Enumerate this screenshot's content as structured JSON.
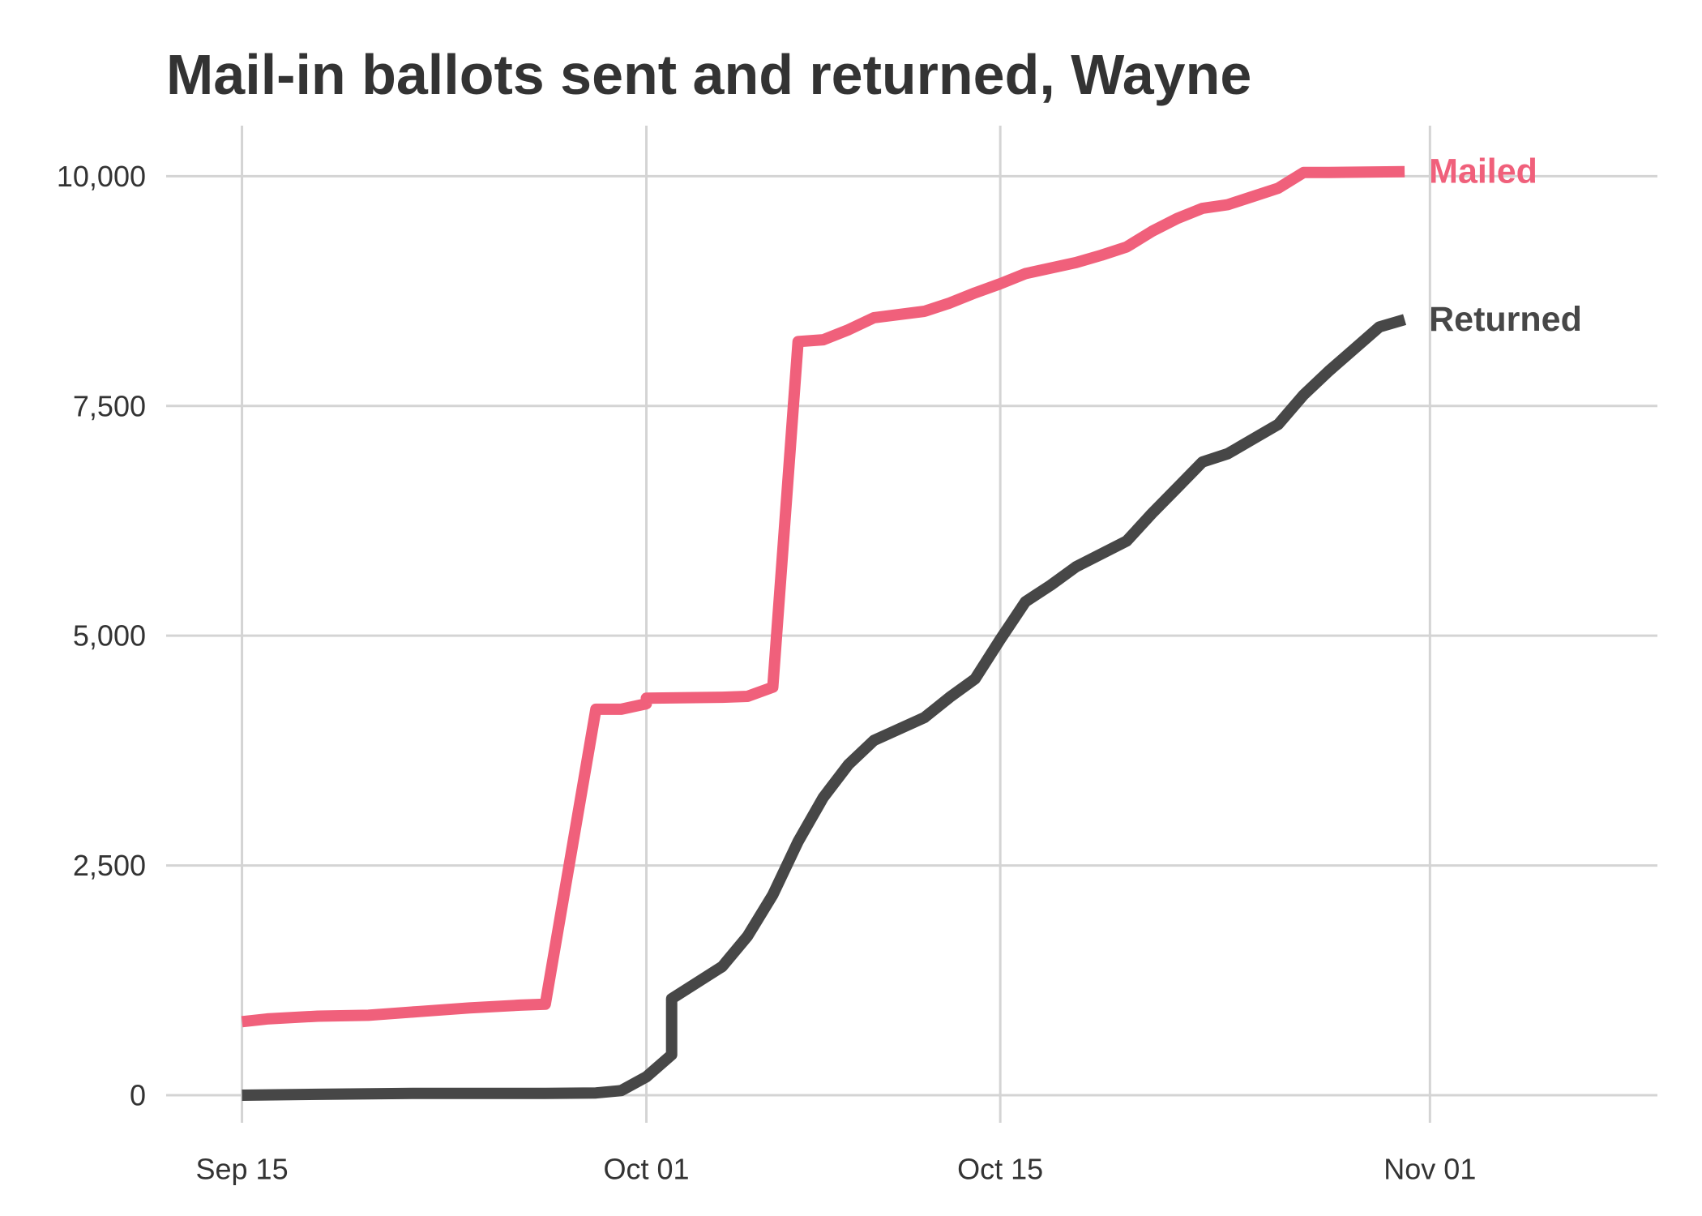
{
  "chart_data": {
    "type": "line",
    "title": "Mail-in ballots sent and returned, Wayne",
    "xlabel": "",
    "ylabel": "",
    "x_axis": {
      "type": "date",
      "range": [
        "2020-09-12",
        "2020-11-10"
      ],
      "ticks": [
        {
          "value": "2020-09-15",
          "label": "Sep 15"
        },
        {
          "value": "2020-10-01",
          "label": "Oct 01"
        },
        {
          "value": "2020-10-15",
          "label": "Oct 15"
        },
        {
          "value": "2020-11-01",
          "label": "Nov 01"
        }
      ]
    },
    "y_axis": {
      "range": [
        -300,
        10550
      ],
      "ticks": [
        {
          "value": 0,
          "label": "0"
        },
        {
          "value": 2500,
          "label": "2,500"
        },
        {
          "value": 5000,
          "label": "5,000"
        },
        {
          "value": 7500,
          "label": "7,500"
        },
        {
          "value": 10000,
          "label": "10,000"
        }
      ]
    },
    "grid": true,
    "legend": "direct labels at line ends",
    "series": [
      {
        "name": "Mailed",
        "color": "#f0607b",
        "points": [
          [
            "2020-09-15",
            800
          ],
          [
            "2020-09-16",
            830
          ],
          [
            "2020-09-18",
            860
          ],
          [
            "2020-09-20",
            870
          ],
          [
            "2020-09-22",
            910
          ],
          [
            "2020-09-24",
            950
          ],
          [
            "2020-09-26",
            980
          ],
          [
            "2020-09-27",
            990
          ],
          [
            "2020-09-29",
            4200
          ],
          [
            "2020-09-30",
            4200
          ],
          [
            "2020-10-01",
            4260
          ],
          [
            "2020-10-01",
            4320
          ],
          [
            "2020-10-04",
            4330
          ],
          [
            "2020-10-05",
            4340
          ],
          [
            "2020-10-06",
            4440
          ],
          [
            "2020-10-07",
            8200
          ],
          [
            "2020-10-08",
            8220
          ],
          [
            "2020-10-09",
            8330
          ],
          [
            "2020-10-10",
            8460
          ],
          [
            "2020-10-12",
            8530
          ],
          [
            "2020-10-13",
            8620
          ],
          [
            "2020-10-14",
            8730
          ],
          [
            "2020-10-15",
            8830
          ],
          [
            "2020-10-16",
            8940
          ],
          [
            "2020-10-18",
            9060
          ],
          [
            "2020-10-19",
            9140
          ],
          [
            "2020-10-20",
            9230
          ],
          [
            "2020-10-21",
            9400
          ],
          [
            "2020-10-22",
            9540
          ],
          [
            "2020-10-23",
            9650
          ],
          [
            "2020-10-24",
            9690
          ],
          [
            "2020-10-25",
            9780
          ],
          [
            "2020-10-26",
            9870
          ],
          [
            "2020-10-27",
            10040
          ],
          [
            "2020-10-28",
            10040
          ],
          [
            "2020-10-31",
            10050
          ]
        ]
      },
      {
        "name": "Returned",
        "color": "#474747",
        "points": [
          [
            "2020-09-15",
            0
          ],
          [
            "2020-09-18",
            10
          ],
          [
            "2020-09-22",
            20
          ],
          [
            "2020-09-27",
            20
          ],
          [
            "2020-09-29",
            25
          ],
          [
            "2020-09-30",
            50
          ],
          [
            "2020-10-01",
            200
          ],
          [
            "2020-10-02",
            440
          ],
          [
            "2020-10-02",
            1050
          ],
          [
            "2020-10-04",
            1400
          ],
          [
            "2020-10-05",
            1730
          ],
          [
            "2020-10-06",
            2180
          ],
          [
            "2020-10-07",
            2760
          ],
          [
            "2020-10-08",
            3240
          ],
          [
            "2020-10-09",
            3600
          ],
          [
            "2020-10-10",
            3860
          ],
          [
            "2020-10-12",
            4110
          ],
          [
            "2020-10-13",
            4330
          ],
          [
            "2020-10-14",
            4530
          ],
          [
            "2020-10-15",
            4960
          ],
          [
            "2020-10-16",
            5370
          ],
          [
            "2020-10-17",
            5550
          ],
          [
            "2020-10-18",
            5750
          ],
          [
            "2020-10-20",
            6030
          ],
          [
            "2020-10-21",
            6330
          ],
          [
            "2020-10-22",
            6610
          ],
          [
            "2020-10-23",
            6890
          ],
          [
            "2020-10-24",
            6980
          ],
          [
            "2020-10-25",
            7140
          ],
          [
            "2020-10-26",
            7300
          ],
          [
            "2020-10-27",
            7620
          ],
          [
            "2020-10-28",
            7880
          ],
          [
            "2020-10-29",
            8120
          ],
          [
            "2020-10-30",
            8360
          ],
          [
            "2020-10-31",
            8440
          ]
        ]
      }
    ]
  }
}
